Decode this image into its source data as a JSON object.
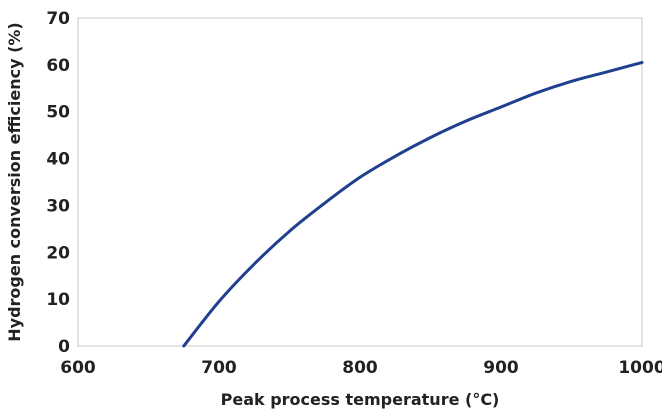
{
  "chart_data": {
    "type": "line",
    "title": "",
    "xlabel": "Peak process temperature (°C)",
    "ylabel": "Hydrogen conversion efficiency (%)",
    "xlim": [
      600,
      1000
    ],
    "ylim": [
      0,
      70
    ],
    "x_ticks": [
      600,
      700,
      800,
      900,
      1000
    ],
    "y_ticks": [
      0,
      10,
      20,
      30,
      40,
      50,
      60,
      70
    ],
    "grid": false,
    "legend": "none",
    "series": [
      {
        "color": "#1f3f8f",
        "x": [
          675,
          700,
          725,
          750,
          775,
          800,
          825,
          850,
          875,
          900,
          925,
          950,
          975,
          1000
        ],
        "y": [
          0,
          9.5,
          17.5,
          24.5,
          30.5,
          36,
          40.5,
          44.5,
          48,
          51,
          54,
          56.5,
          58.5,
          60.5
        ]
      }
    ]
  }
}
